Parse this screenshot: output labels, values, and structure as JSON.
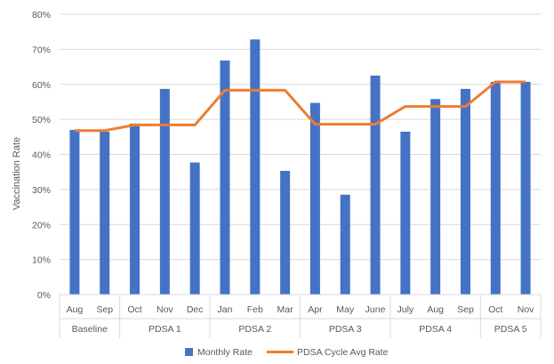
{
  "chart_data": {
    "type": "bar",
    "ylabel": "Vaccination Rate",
    "ylim": [
      0,
      80
    ],
    "y_ticks": [
      "0%",
      "10%",
      "20%",
      "30%",
      "40%",
      "50%",
      "60%",
      "70%",
      "80%"
    ],
    "y_tick_values": [
      0,
      10,
      20,
      30,
      40,
      50,
      60,
      70,
      80
    ],
    "grid": true,
    "categories": [
      "Aug",
      "Sep",
      "Oct",
      "Nov",
      "Dec",
      "Jan",
      "Feb",
      "Mar",
      "Apr",
      "May",
      "June",
      "July",
      "Aug",
      "Sep",
      "Oct",
      "Nov"
    ],
    "groups": [
      {
        "label": "Baseline",
        "count": 2
      },
      {
        "label": "PDSA 1",
        "count": 3
      },
      {
        "label": "PDSA 2",
        "count": 3
      },
      {
        "label": "PDSA 3",
        "count": 3
      },
      {
        "label": "PDSA 4",
        "count": 3
      },
      {
        "label": "PDSA 5",
        "count": 2
      }
    ],
    "series": [
      {
        "name": "Monthly Rate",
        "type": "bar",
        "color": "#4472C4",
        "values": [
          47,
          46.5,
          48.8,
          58.7,
          37.7,
          66.8,
          72.8,
          35.3,
          54.7,
          28.5,
          62.5,
          46.5,
          55.8,
          58.7,
          60.7,
          60.7
        ]
      },
      {
        "name": "PDSA Cycle Avg Rate",
        "type": "line",
        "color": "#ED7D31",
        "values": [
          46.8,
          46.8,
          48.4,
          48.4,
          48.4,
          58.3,
          58.3,
          58.3,
          48.6,
          48.6,
          48.6,
          53.7,
          53.7,
          53.7,
          60.7,
          60.7
        ]
      }
    ],
    "legend_position": "bottom"
  }
}
